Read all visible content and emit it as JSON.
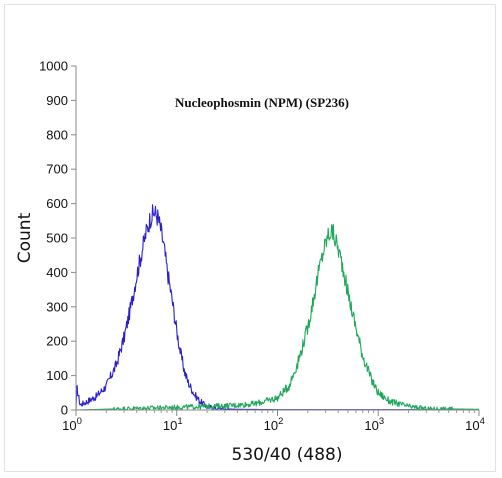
{
  "chart_data": {
    "type": "line",
    "title": "Nucleophosmin (NPM) (SP236)",
    "xlabel": "530/40 (488)",
    "ylabel": "Count",
    "xscale": "log",
    "xlim": [
      1,
      10000
    ],
    "ylim": [
      0,
      1000
    ],
    "grid": false,
    "xticks": [
      {
        "value": 1,
        "base": "10",
        "exp": "0"
      },
      {
        "value": 10,
        "base": "10",
        "exp": "1"
      },
      {
        "value": 100,
        "base": "10",
        "exp": "2"
      },
      {
        "value": 1000,
        "base": "10",
        "exp": "3"
      },
      {
        "value": 10000,
        "base": "10",
        "exp": "4"
      }
    ],
    "yticks": [
      "0",
      "100",
      "200",
      "300",
      "400",
      "500",
      "600",
      "700",
      "800",
      "900",
      "1000"
    ],
    "series": [
      {
        "color": "#2a1fc9",
        "x": [
          1.0,
          1.02,
          1.1,
          1.3,
          1.6,
          2.0,
          2.5,
          3.0,
          3.5,
          4.0,
          4.5,
          5.0,
          5.5,
          6.0,
          6.5,
          7.0,
          7.5,
          8.0,
          9.0,
          10.0,
          11.0,
          12.0,
          13.0,
          15.0,
          17.0,
          20.0,
          25.0,
          40.0,
          100.0,
          1000.0,
          10000.0
        ],
        "y": [
          0,
          65,
          15,
          25,
          40,
          70,
          130,
          210,
          300,
          390,
          460,
          520,
          560,
          575,
          560,
          520,
          470,
          410,
          320,
          230,
          160,
          110,
          80,
          45,
          25,
          10,
          4,
          2,
          1,
          1,
          1
        ]
      },
      {
        "color": "#1fa85a",
        "x": [
          1.0,
          10.0,
          30.0,
          60.0,
          100.0,
          130.0,
          160.0,
          200.0,
          230.0,
          260.0,
          290.0,
          320.0,
          350.0,
          400.0,
          450.0,
          500.0,
          600.0,
          700.0,
          850.0,
          1000.0,
          1300.0,
          2000.0,
          3000.0,
          10000.0
        ],
        "y": [
          0,
          8,
          12,
          18,
          35,
          70,
          140,
          240,
          330,
          410,
          470,
          510,
          520,
          470,
          410,
          340,
          240,
          160,
          90,
          50,
          25,
          10,
          4,
          2
        ]
      }
    ]
  }
}
